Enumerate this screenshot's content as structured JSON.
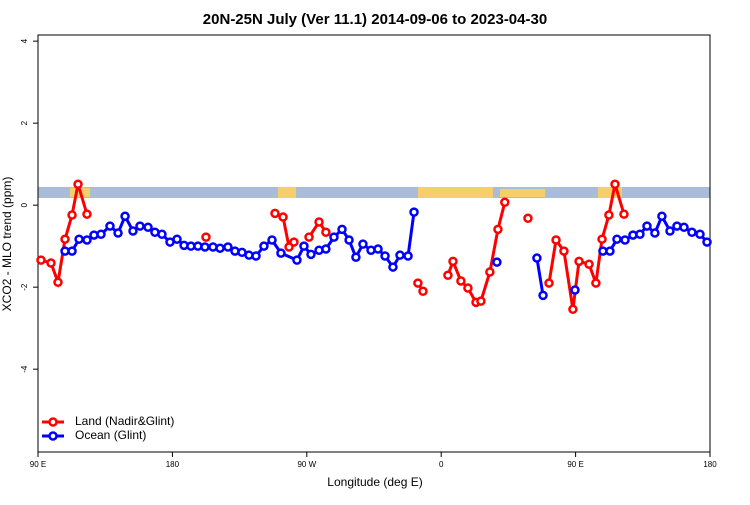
{
  "chart_data": {
    "type": "line",
    "title": "20N-25N July (Ver 11.1)   2014-09-06 to 2023-04-30",
    "x_label": "Longitude (deg E)",
    "y_label": "XCO2 - MLO trend (ppm)",
    "xlim": [
      90,
      540
    ],
    "xticks": [
      {
        "value": 90,
        "label": "90 E"
      },
      180,
      {
        "value": 270,
        "label": "90 W"
      },
      {
        "value": 360,
        "label": "0"
      },
      {
        "value": 450,
        "label": "90 E"
      },
      {
        "value": 540,
        "label": "180"
      }
    ],
    "ylim": [
      -6.02,
      4.15
    ],
    "yticks": [
      -4,
      -2,
      0,
      2,
      4
    ],
    "legend": "bottom-left",
    "series": [
      {
        "name": "Land (Nadir&Glint)",
        "color": "#ff0000",
        "x": [
          92.0,
          98.7,
          103.4,
          108.1,
          112.8,
          116.8,
          122.8,
          null,
          202.5,
          null,
          248.7,
          254.1,
          258.1,
          261.4,
          null,
          271.5,
          278.2,
          282.8,
          null,
          344.4,
          347.8,
          null,
          364.5,
          367.9,
          373.2,
          377.9,
          383.3,
          386.6,
          392.6,
          398.0,
          402.6,
          null,
          418.1,
          null,
          432.2,
          436.9,
          442.2,
          448.2,
          452.3,
          459.0,
          463.6,
          467.7,
          472.3,
          476.4,
          482.4
        ],
        "values": [
          -1.34,
          -1.41,
          -1.88,
          -0.83,
          -0.24,
          0.51,
          -0.22,
          null,
          -0.78,
          null,
          -0.2,
          -0.29,
          -1.02,
          -0.9,
          null,
          -0.78,
          -0.41,
          -0.66,
          null,
          -1.9,
          -2.1,
          null,
          -1.71,
          -1.37,
          -1.85,
          -2.02,
          -2.37,
          -2.34,
          -1.63,
          -0.59,
          0.07,
          null,
          -0.32,
          null,
          -1.9,
          -0.85,
          -1.12,
          -2.54,
          -1.37,
          -1.44,
          -1.9,
          -0.83,
          -0.24,
          0.51,
          -0.22
        ]
      },
      {
        "name": "Ocean (Glint)",
        "color": "#0000ff",
        "x": [
          108.1,
          112.8,
          117.5,
          122.8,
          127.5,
          132.2,
          138.2,
          143.6,
          148.3,
          153.6,
          158.3,
          163.7,
          168.3,
          173.0,
          178.4,
          183.1,
          187.8,
          192.4,
          197.1,
          201.8,
          207.2,
          211.9,
          217.2,
          221.9,
          226.6,
          231.3,
          236.0,
          241.3,
          246.7,
          252.7,
          263.4,
          268.1,
          272.8,
          278.2,
          282.8,
          288.2,
          293.6,
          298.3,
          302.9,
          307.6,
          313.0,
          317.7,
          322.4,
          327.7,
          332.4,
          337.8,
          341.8,
          null,
          397.3,
          null,
          424.1,
          428.2,
          null,
          449.6,
          null,
          468.3,
          473.0,
          477.7,
          483.1,
          488.4,
          493.1,
          497.8,
          503.1,
          507.8,
          513.2,
          517.9,
          522.6,
          527.9,
          533.3,
          538.0
        ],
        "values": [
          -1.12,
          -1.12,
          -0.83,
          -0.85,
          -0.73,
          -0.71,
          -0.51,
          -0.68,
          -0.27,
          -0.63,
          -0.51,
          -0.54,
          -0.66,
          -0.71,
          -0.9,
          -0.83,
          -0.98,
          -1.0,
          -1.0,
          -1.02,
          -1.02,
          -1.05,
          -1.02,
          -1.12,
          -1.15,
          -1.22,
          -1.24,
          -1.0,
          -0.85,
          -1.17,
          -1.34,
          -1.0,
          -1.2,
          -1.1,
          -1.07,
          -0.78,
          -0.59,
          -0.85,
          -1.27,
          -0.95,
          -1.1,
          -1.07,
          -1.24,
          -1.51,
          -1.22,
          -1.24,
          -0.17,
          null,
          -1.39,
          null,
          -1.29,
          -2.2,
          null,
          -2.07,
          null,
          -1.12,
          -1.12,
          -0.83,
          -0.85,
          -0.73,
          -0.71,
          -0.51,
          -0.68,
          -0.27,
          -0.63,
          -0.51,
          -0.54,
          -0.66,
          -0.71,
          -0.9
        ]
      }
    ]
  }
}
